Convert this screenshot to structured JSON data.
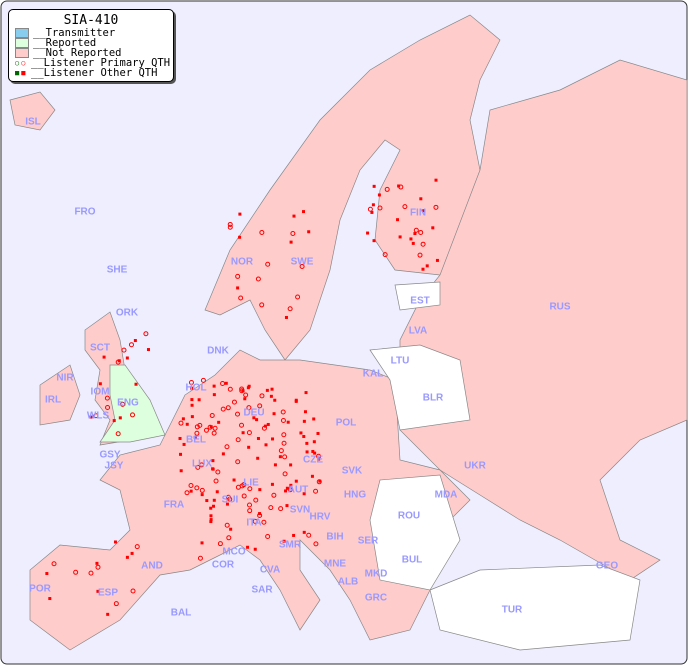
{
  "legend": {
    "title": "SIA-410",
    "items": [
      {
        "label": "__Transmitter",
        "color": "#88ccee"
      },
      {
        "label": "__Reported",
        "color": "#ddffdd"
      },
      {
        "label": "__Not Reported",
        "color": "#ffcccc"
      },
      {
        "label": "__Listener Primary QTH",
        "marker": "circle"
      },
      {
        "label": "__Listener Other QTH",
        "marker": "square"
      }
    ]
  },
  "colors": {
    "sea": "#eeeeff",
    "not_reported": "#ffcccc",
    "reported": "#ddffdd",
    "no_data": "#ffffff",
    "listener": "#ff0000",
    "label": "#9999ff"
  },
  "countries": [
    "ISL",
    "FRO",
    "SHE",
    "ORK",
    "NOR",
    "SWE",
    "FIN",
    "EST",
    "LVA",
    "LTU",
    "RUS",
    "DNK",
    "HOL",
    "DEU",
    "POL",
    "KAL",
    "BLR",
    "UKR",
    "IRL",
    "NIR",
    "SCT",
    "IOM",
    "WLS",
    "ENG",
    "GSY",
    "JSY",
    "BEL",
    "LUX",
    "FRA",
    "SUI",
    "LIE",
    "AUT",
    "CZE",
    "SVK",
    "HNG",
    "MDA",
    "ROU",
    "SVN",
    "HRV",
    "ITA",
    "BIH",
    "SER",
    "BUL",
    "MNE",
    "MKD",
    "ALB",
    "GRC",
    "TUR",
    "GEO",
    "MCO",
    "COR",
    "CVA",
    "SMR",
    "AND",
    "POR",
    "ESP",
    "BAL",
    "SAR"
  ]
}
